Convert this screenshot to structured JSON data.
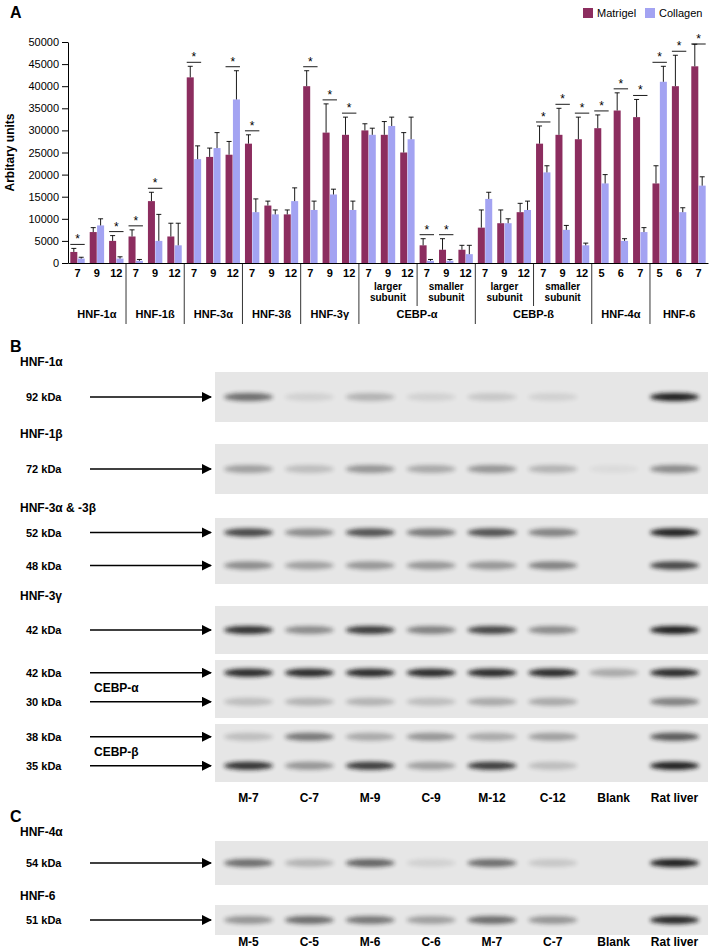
{
  "chart_data": {
    "type": "bar",
    "y_label": "Arbitary units",
    "categories": [
      "7",
      "9",
      "12",
      "7",
      "9",
      "12",
      "7",
      "9",
      "12",
      "7",
      "9",
      "12",
      "7",
      "9",
      "12",
      "7",
      "9",
      "12",
      "7",
      "9",
      "12",
      "7",
      "9",
      "12",
      "7",
      "9",
      "12",
      "5",
      "6",
      "7",
      "5",
      "6",
      "7"
    ],
    "groups": [
      "HNF-1α",
      "HNF-1α",
      "HNF-1α",
      "HNF-1ß",
      "HNF-1ß",
      "HNF-1ß",
      "HNF-3α",
      "HNF-3α",
      "HNF-3α",
      "HNF-3ß",
      "HNF-3ß",
      "HNF-3ß",
      "HNF-3γ",
      "HNF-3γ",
      "HNF-3γ",
      "CEBP-α",
      "CEBP-α",
      "CEBP-α",
      "CEBP-α",
      "CEBP-α",
      "CEBP-α",
      "CEBP-ß",
      "CEBP-ß",
      "CEBP-ß",
      "CEBP-ß",
      "CEBP-ß",
      "CEBP-ß",
      "HNF-4α",
      "HNF-4α",
      "HNF-4α",
      "HNF-6",
      "HNF-6",
      "HNF-6"
    ],
    "subgroups": [
      null,
      null,
      null,
      null,
      null,
      null,
      null,
      null,
      null,
      null,
      null,
      null,
      null,
      null,
      null,
      "larger subunit",
      "larger subunit",
      "larger subunit",
      "smaller subunit",
      "smaller subunit",
      "smaller subunit",
      "larger subunit",
      "larger subunit",
      "larger subunit",
      "smaller subunit",
      "smaller subunit",
      "smaller subunit",
      null,
      null,
      null,
      null,
      null,
      null
    ],
    "series": [
      {
        "name": "Matrigel",
        "color": "#8c2d5f",
        "values": [
          2500,
          7000,
          5000,
          6000,
          14000,
          6000,
          42000,
          24000,
          24500,
          27000,
          13000,
          11000,
          40000,
          29500,
          29000,
          30000,
          29000,
          25000,
          4000,
          3000,
          3000,
          8000,
          9000,
          11500,
          27000,
          29000,
          28000,
          30500,
          34500,
          33000,
          18000,
          40000,
          44500
        ],
        "errors": [
          800,
          1000,
          1200,
          1500,
          2000,
          3000,
          2500,
          2000,
          3000,
          2000,
          1000,
          1000,
          3500,
          6500,
          4000,
          1500,
          3000,
          4500,
          1500,
          2500,
          1000,
          4000,
          3000,
          2000,
          4000,
          6000,
          5000,
          3000,
          4000,
          4000,
          4000,
          7000,
          5000
        ]
      },
      {
        "name": "Collagen",
        "color": "#a3a3f2",
        "values": [
          1000,
          8500,
          1000,
          500,
          5000,
          4000,
          23500,
          26000,
          37000,
          11500,
          11000,
          14000,
          12000,
          15500,
          12000,
          29000,
          31000,
          28000,
          500,
          500,
          2000,
          14500,
          9000,
          12000,
          20500,
          7500,
          4000,
          18000,
          5000,
          7000,
          41000,
          11500,
          17500
        ],
        "errors": [
          300,
          1500,
          400,
          300,
          6000,
          5000,
          3000,
          3500,
          6500,
          3000,
          1000,
          3000,
          2000,
          1200,
          2000,
          1500,
          2000,
          5000,
          300,
          300,
          2000,
          1500,
          1000,
          2000,
          1500,
          1000,
          500,
          2000,
          500,
          1000,
          3500,
          1000,
          2000
        ]
      }
    ],
    "significant": [
      true,
      false,
      true,
      true,
      true,
      false,
      true,
      false,
      true,
      true,
      false,
      false,
      true,
      true,
      true,
      false,
      false,
      false,
      true,
      true,
      false,
      false,
      false,
      false,
      true,
      true,
      true,
      true,
      true,
      true,
      true,
      true,
      true
    ],
    "significance_label": "*",
    "ylim": [
      0,
      50000
    ],
    "yticks": [
      0,
      5000,
      10000,
      15000,
      20000,
      25000,
      30000,
      35000,
      40000,
      45000,
      50000
    ],
    "grid": false,
    "legend": "top-right"
  },
  "panel_labels": [
    "A",
    "B",
    "C"
  ],
  "blots": [
    {
      "lanes": [
        "M-7",
        "C-7",
        "M-9",
        "C-9",
        "M-12",
        "C-12",
        "Blank",
        "Rat liver"
      ],
      "rows": [
        {
          "name": "HNF-1α",
          "bands": [
            {
              "label": "92 kDa",
              "intensity": [
                0.6,
                0.1,
                0.25,
                0.1,
                0.15,
                0.1,
                0,
                1.0
              ]
            }
          ]
        },
        {
          "name": "HNF-1β",
          "bands": [
            {
              "label": "72 kDa",
              "intensity": [
                0.35,
                0.2,
                0.4,
                0.3,
                0.4,
                0.25,
                0.05,
                0.45
              ]
            }
          ]
        },
        {
          "name": "HNF-3α & -3β",
          "bands": [
            {
              "label": "52 kDa",
              "intensity": [
                0.8,
                0.45,
                0.75,
                0.55,
                0.75,
                0.5,
                0,
                1.0
              ]
            },
            {
              "label": "48 kDa",
              "intensity": [
                0.45,
                0.35,
                0.4,
                0.4,
                0.4,
                0.5,
                0,
                0.8
              ]
            }
          ]
        },
        {
          "name": "HNF-3γ",
          "bands": [
            {
              "label": "42 kDa",
              "intensity": [
                0.9,
                0.45,
                0.85,
                0.5,
                0.8,
                0.45,
                0,
                1.0
              ]
            }
          ]
        },
        {
          "name": "CEBP-α",
          "bands": [
            {
              "label": "42 kDa",
              "intensity": [
                0.95,
                0.95,
                0.95,
                0.95,
                0.95,
                0.95,
                0.3,
                0.95
              ]
            },
            {
              "label": "30 kDa",
              "intensity": [
                0.2,
                0.25,
                0.25,
                0.2,
                0.3,
                0.3,
                0,
                0.5
              ]
            }
          ]
        },
        {
          "name": "CEBP-β",
          "bands": [
            {
              "label": "38 kDa",
              "intensity": [
                0.2,
                0.55,
                0.3,
                0.4,
                0.3,
                0.35,
                0,
                0.7
              ]
            },
            {
              "label": "35 kDa",
              "intensity": [
                0.9,
                0.4,
                0.85,
                0.35,
                0.85,
                0.2,
                0,
                1.0
              ]
            }
          ]
        }
      ]
    },
    {
      "lanes": [
        "M-5",
        "C-5",
        "M-6",
        "C-6",
        "M-7",
        "C-7",
        "Blank",
        "Rat liver"
      ],
      "rows": [
        {
          "name": "HNF-4α",
          "bands": [
            {
              "label": "54 kDa",
              "intensity": [
                0.6,
                0.25,
                0.65,
                0.1,
                0.6,
                0.15,
                0,
                1.0
              ]
            }
          ]
        },
        {
          "name": "HNF-6",
          "bands": [
            {
              "label": "51 kDa",
              "intensity": [
                0.4,
                0.6,
                0.55,
                0.35,
                0.6,
                0.4,
                0,
                0.95
              ]
            }
          ]
        }
      ]
    }
  ]
}
